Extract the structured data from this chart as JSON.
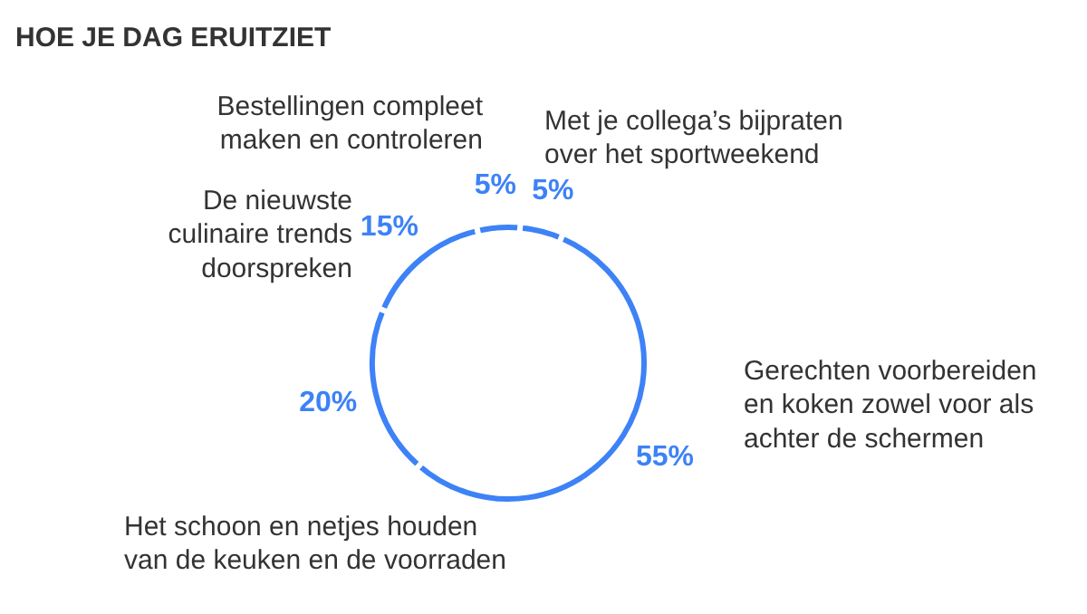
{
  "chart_data": {
    "type": "donut",
    "title": "HOE JE DAG ERUITZIET",
    "categories": [
      "Met je collega’s bijpraten over het sportweekend",
      "Gerechten voorbereiden en koken zowel voor als achter de schermen",
      "Het schoon en netjes houden van de keuken en de voorraden",
      "De nieuwste culinaire trends doorspreken",
      "Bestellingen compleet maken en controleren"
    ],
    "values": [
      5,
      55,
      20,
      15,
      5
    ],
    "value_labels": [
      "5%",
      "55%",
      "20%",
      "15%",
      "5%"
    ],
    "colors": [
      "#3d82f6",
      "#3d82f6",
      "#3d82f6",
      "#3d82f6",
      "#3d82f6"
    ]
  }
}
